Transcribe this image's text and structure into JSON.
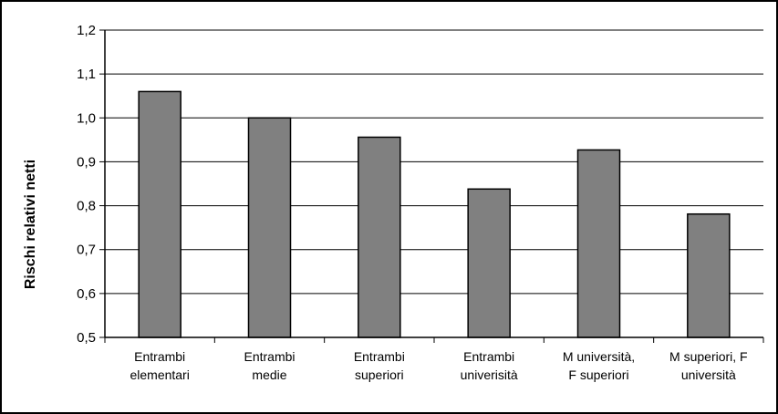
{
  "chart_data": {
    "type": "bar",
    "title": "",
    "xlabel": "",
    "ylabel": "Rischi relativi netti",
    "ylim": [
      0.5,
      1.2
    ],
    "yticks": [
      0.5,
      0.6,
      0.7,
      0.8,
      0.9,
      1.0,
      1.1,
      1.2
    ],
    "ytick_labels": [
      "0,5",
      "0,6",
      "0,7",
      "0,8",
      "0,9",
      "1,0",
      "1,1",
      "1,2"
    ],
    "categories": [
      [
        "Entrambi",
        "elementari"
      ],
      [
        "Entrambi",
        "medie"
      ],
      [
        "Entrambi",
        "superiori"
      ],
      [
        "Entrambi",
        "univerisità"
      ],
      [
        "M università,",
        "F superiori"
      ],
      [
        "M superiori, F",
        "università"
      ]
    ],
    "values": [
      1.06,
      1.0,
      0.956,
      0.838,
      0.927,
      0.781
    ],
    "bar_color": "#808080",
    "grid": true,
    "legend": "none"
  }
}
